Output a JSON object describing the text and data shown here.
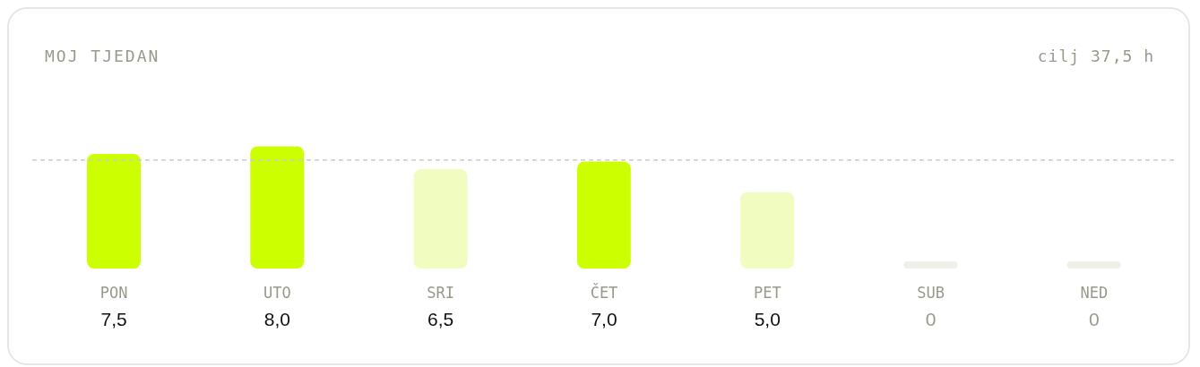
{
  "chart_data": {
    "type": "bar",
    "title": "MOJ TJEDAN",
    "subtitle": "cilj 37,5 h",
    "categories": [
      "PON",
      "UTO",
      "SRI",
      "ČET",
      "PET",
      "SUB",
      "NED"
    ],
    "values": [
      7.5,
      8.0,
      6.5,
      7.0,
      5.0,
      0,
      0
    ],
    "colors": [
      "#ccff00",
      "#ccff00",
      "#f0fcc0",
      "#ccff00",
      "#f0fcc0",
      "#f0f0ea",
      "#f0f0ea"
    ],
    "value_labels": [
      "7,5",
      "8,0",
      "6,5",
      "7,0",
      "5,0",
      "0",
      "0"
    ],
    "ref_lines": [
      {
        "axis": "y",
        "value": 7.1,
        "color": "#cccccc",
        "line_style": "dashed"
      }
    ],
    "grid": false,
    "legend": false
  }
}
